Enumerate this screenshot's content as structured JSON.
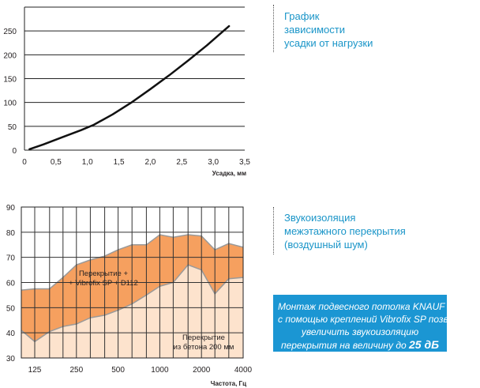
{
  "captions": {
    "shrinkage": [
      "График",
      "зависимости",
      "усадки от нагрузки"
    ],
    "sound": [
      "Звукоизоляция",
      "межэтажного перекрытия",
      "(воздушный шум)"
    ]
  },
  "note": {
    "lines": [
      "Монтаж подвесного потолка KNAUF",
      "с помощью креплений Vibrofix SP позволяет",
      "увеличить звукоизоляцию",
      "перекрытия на величину до "
    ],
    "highlight": "25 дБ"
  },
  "colors": {
    "accent": "#1a95c8",
    "note_bg": "#1b96d3",
    "upper_fill": "#f6a05f",
    "lower_fill": "#fde3cd"
  },
  "chart_data": [
    {
      "type": "line",
      "title": "",
      "xlabel": "Усадка, мм",
      "ylabel": "",
      "x_ticks": [
        "0",
        "0,5",
        "1,0",
        "1,5",
        "2,0",
        "2,5",
        "3,0",
        "3,5"
      ],
      "y_ticks": [
        "0",
        "50",
        "100",
        "150",
        "200",
        "250"
      ],
      "xlim": [
        0,
        3.5
      ],
      "ylim": [
        0,
        300
      ],
      "grid": "horizontal",
      "series": [
        {
          "x": [
            0.08,
            0.3,
            0.6,
            0.9,
            1.1,
            1.4,
            1.7,
            2.0,
            2.3,
            2.6,
            2.9,
            3.1,
            3.25
          ],
          "y": [
            2,
            12,
            27,
            42,
            53,
            75,
            100,
            128,
            157,
            188,
            220,
            243,
            260
          ]
        }
      ]
    },
    {
      "type": "area",
      "title": "",
      "xlabel": "Частота, Гц",
      "ylabel": "",
      "x_ticks": [
        "125",
        "250",
        "500",
        "1000",
        "2000",
        "4000"
      ],
      "y_ticks": [
        "30",
        "40",
        "50",
        "60",
        "70",
        "80",
        "90"
      ],
      "xlim": [
        100,
        4000
      ],
      "ylim": [
        30,
        90
      ],
      "scale_x": "log",
      "grid": "both",
      "series": [
        {
          "name": "Перекрытие + + Vibrofix SP + D112",
          "label_lines": [
            "Перекрытие +",
            "+ Vibrofix SP + D112"
          ],
          "x": [
            100,
            125,
            160,
            200,
            250,
            315,
            400,
            500,
            630,
            800,
            1000,
            1250,
            1600,
            2000,
            2500,
            3150,
            4000
          ],
          "y": [
            57,
            57.5,
            57.5,
            62,
            67,
            69,
            70.5,
            73,
            75,
            75,
            79,
            78,
            79,
            78.5,
            73,
            75.5,
            74
          ]
        },
        {
          "name": "Перекрытие из бетона 200 мм",
          "label_lines": [
            "Перекрытие",
            "из бетона 200 мм"
          ],
          "x": [
            100,
            125,
            160,
            200,
            250,
            315,
            400,
            500,
            630,
            800,
            1000,
            1250,
            1600,
            2000,
            2500,
            3150,
            4000
          ],
          "y": [
            41,
            36.5,
            40.5,
            42.5,
            43.5,
            46,
            47,
            49,
            51.5,
            55,
            58.5,
            60,
            67,
            65,
            55.5,
            61.5,
            62
          ]
        }
      ]
    }
  ]
}
